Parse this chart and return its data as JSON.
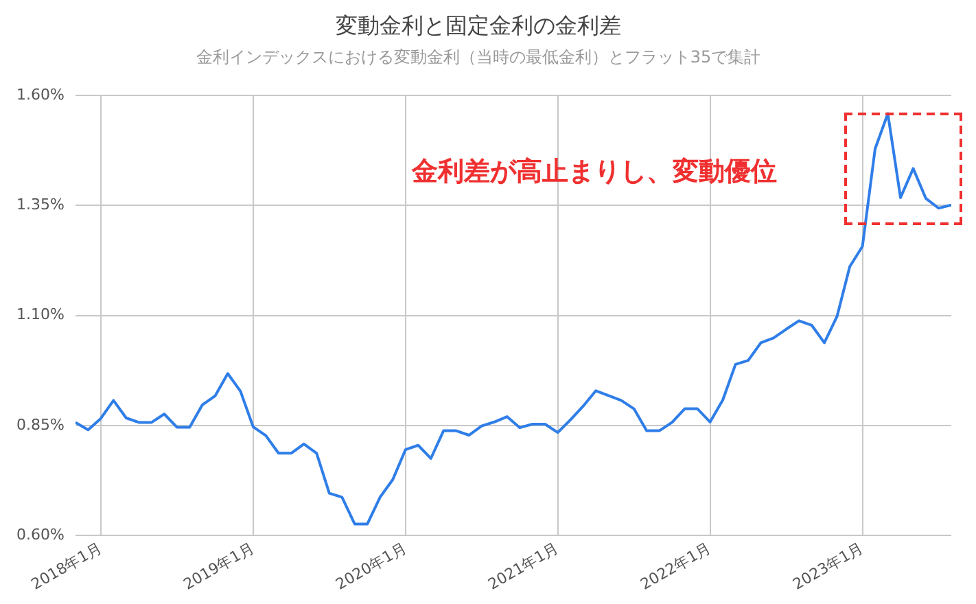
{
  "chart_data": {
    "type": "line",
    "title": "変動金利と固定金利の金利差",
    "subtitle": "金利インデックスにおける変動金利（当時の最低金利）とフラット35で集計",
    "x": [
      "2017-11",
      "2017-12",
      "2018-01",
      "2018-02",
      "2018-03",
      "2018-04",
      "2018-05",
      "2018-06",
      "2018-07",
      "2018-08",
      "2018-09",
      "2018-10",
      "2018-11",
      "2018-12",
      "2019-01",
      "2019-02",
      "2019-03",
      "2019-04",
      "2019-05",
      "2019-06",
      "2019-07",
      "2019-08",
      "2019-09",
      "2019-10",
      "2019-11",
      "2019-12",
      "2020-01",
      "2020-02",
      "2020-03",
      "2020-04",
      "2020-05",
      "2020-06",
      "2020-07",
      "2020-08",
      "2020-09",
      "2020-10",
      "2020-11",
      "2020-12",
      "2021-01",
      "2021-02",
      "2021-03",
      "2021-04",
      "2021-05",
      "2021-06",
      "2021-07",
      "2021-08",
      "2021-09",
      "2021-10",
      "2021-11",
      "2021-12",
      "2022-01",
      "2022-02",
      "2022-03",
      "2022-04",
      "2022-05",
      "2022-06",
      "2022-07",
      "2022-08",
      "2022-09",
      "2022-10",
      "2022-11",
      "2022-12",
      "2023-01",
      "2023-02",
      "2023-03",
      "2023-04",
      "2023-05",
      "2023-06",
      "2023-07",
      "2023-08"
    ],
    "series": [
      {
        "color": "#2f7ee8",
        "values": [
          0.857,
          0.84,
          0.866,
          0.907,
          0.867,
          0.857,
          0.857,
          0.876,
          0.846,
          0.846,
          0.897,
          0.917,
          0.968,
          0.928,
          0.847,
          0.827,
          0.787,
          0.787,
          0.808,
          0.787,
          0.696,
          0.687,
          0.626,
          0.626,
          0.687,
          0.727,
          0.795,
          0.805,
          0.775,
          0.838,
          0.838,
          0.828,
          0.849,
          0.858,
          0.87,
          0.845,
          0.853,
          0.853,
          0.834,
          0.863,
          0.894,
          0.929,
          0.918,
          0.907,
          0.888,
          0.838,
          0.838,
          0.857,
          0.888,
          0.888,
          0.858,
          0.908,
          0.989,
          0.998,
          1.038,
          1.049,
          1.069,
          1.088,
          1.078,
          1.038,
          1.098,
          1.211,
          1.257,
          1.479,
          1.559,
          1.368,
          1.434,
          1.366,
          1.344,
          1.351
        ]
      }
    ],
    "xlim": [
      "2017-11",
      "2023-08"
    ],
    "xticks": [
      {
        "value": "2018-01",
        "label": "2018年1月"
      },
      {
        "value": "2019-01",
        "label": "2019年1月"
      },
      {
        "value": "2020-01",
        "label": "2020年1月"
      },
      {
        "value": "2021-01",
        "label": "2021年1月"
      },
      {
        "value": "2022-01",
        "label": "2022年1月"
      },
      {
        "value": "2023-01",
        "label": "2023年1月"
      }
    ],
    "ylim": [
      0.6,
      1.6
    ],
    "yticks": [
      {
        "value": 0.6,
        "label": "0.60%"
      },
      {
        "value": 0.85,
        "label": "0.85%"
      },
      {
        "value": 1.1,
        "label": "1.10%"
      },
      {
        "value": 1.35,
        "label": "1.35%"
      },
      {
        "value": 1.6,
        "label": "1.60%"
      }
    ],
    "grid": true,
    "marker": "none",
    "line_style": "solid",
    "legend": false,
    "annotations": [
      "金利差が高止まりし、変動優位"
    ]
  }
}
